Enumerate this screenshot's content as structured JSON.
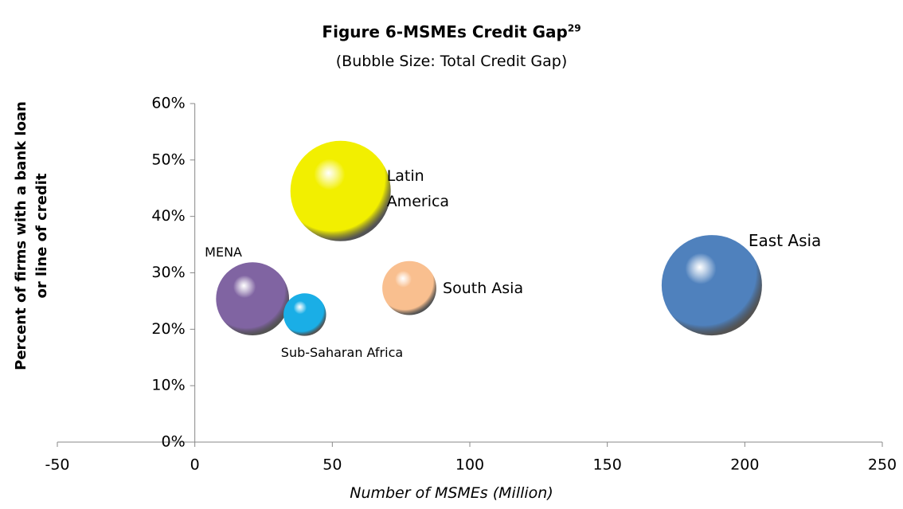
{
  "chart_data": {
    "type": "bubble",
    "title": "Figure 6-MSMEs Credit Gap",
    "title_superscript": "29",
    "subtitle": "(Bubble Size: Total Credit Gap)",
    "x_label": "Number of MSMEs (Million)",
    "y_label": "Percent of firms  with a bank loan or line of credit",
    "xlim": [
      -50,
      250
    ],
    "xticks": [
      -50,
      0,
      50,
      100,
      150,
      200,
      250
    ],
    "ylim": [
      0,
      60
    ],
    "yticks": [
      {
        "value": 0,
        "label": "0%"
      },
      {
        "value": 10,
        "label": "10%"
      },
      {
        "value": 20,
        "label": "20%"
      },
      {
        "value": 30,
        "label": "30%"
      },
      {
        "value": 40,
        "label": "40%"
      },
      {
        "value": 50,
        "label": "50%"
      },
      {
        "value": 60,
        "label": "60%"
      }
    ],
    "series": [
      {
        "name": "Latin America",
        "color": "#f2ef00",
        "x": [
          53
        ],
        "values": [
          44.5
        ],
        "sizes": [
          100
        ]
      },
      {
        "name": "East Asia",
        "color": "#4f81bd",
        "x": [
          188
        ],
        "values": [
          27.8
        ],
        "sizes": [
          100
        ]
      },
      {
        "name": "MENA",
        "color": "#8064a2",
        "x": [
          21
        ],
        "values": [
          25.4
        ],
        "sizes": [
          53
        ]
      },
      {
        "name": "Sub-Saharan Africa",
        "color": "#1aaee6",
        "x": [
          40
        ],
        "values": [
          22.6
        ],
        "sizes": [
          18
        ]
      },
      {
        "name": "South Asia",
        "color": "#f9bf8f",
        "x": [
          78
        ],
        "values": [
          27.3
        ],
        "sizes": [
          29
        ]
      }
    ]
  }
}
